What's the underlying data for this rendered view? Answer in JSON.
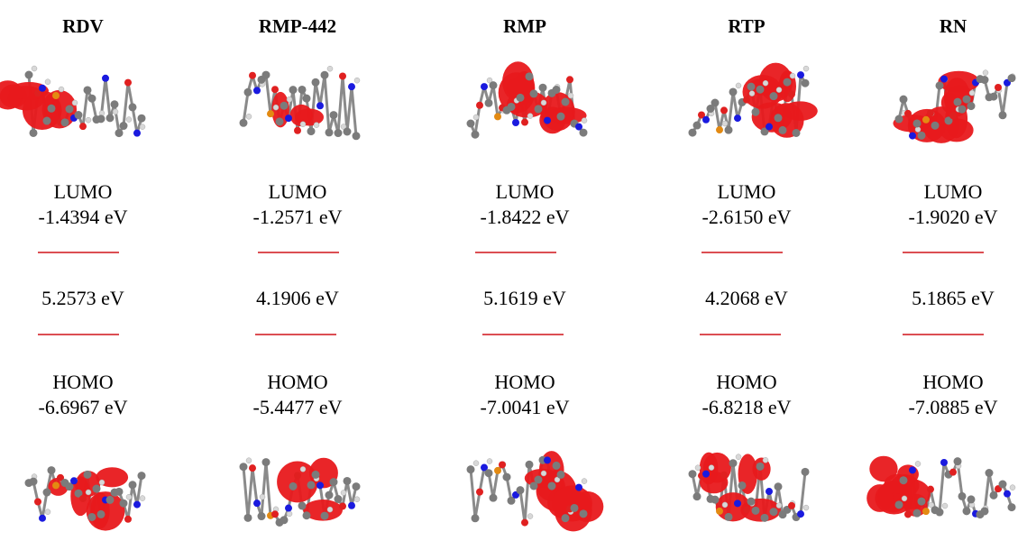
{
  "columns": [
    {
      "title": "RDV",
      "lumo_label": "LUMO",
      "lumo_energy": "-1.4394 eV",
      "gap": "5.2573 eV",
      "homo_label": "HOMO",
      "homo_energy": "-6.6967 eV"
    },
    {
      "title": "RMP-442",
      "lumo_label": "LUMO",
      "lumo_energy": "-1.2571 eV",
      "gap": "4.1906 eV",
      "homo_label": "HOMO",
      "homo_energy": "-5.4477 eV"
    },
    {
      "title": "RMP",
      "lumo_label": "LUMO",
      "lumo_energy": "-1.8422 eV",
      "gap": "5.1619 eV",
      "homo_label": "HOMO",
      "homo_energy": "-7.0041 eV"
    },
    {
      "title": "RTP",
      "lumo_label": "LUMO",
      "lumo_energy": "-2.6150 eV",
      "gap": "4.2068 eV",
      "homo_label": "HOMO",
      "homo_energy": "-6.8218 eV"
    },
    {
      "title": "RN",
      "lumo_label": "LUMO",
      "lumo_energy": "-1.9020 eV",
      "gap": "5.1865 eV",
      "homo_label": "HOMO",
      "homo_energy": "-7.0885 eV"
    }
  ]
}
